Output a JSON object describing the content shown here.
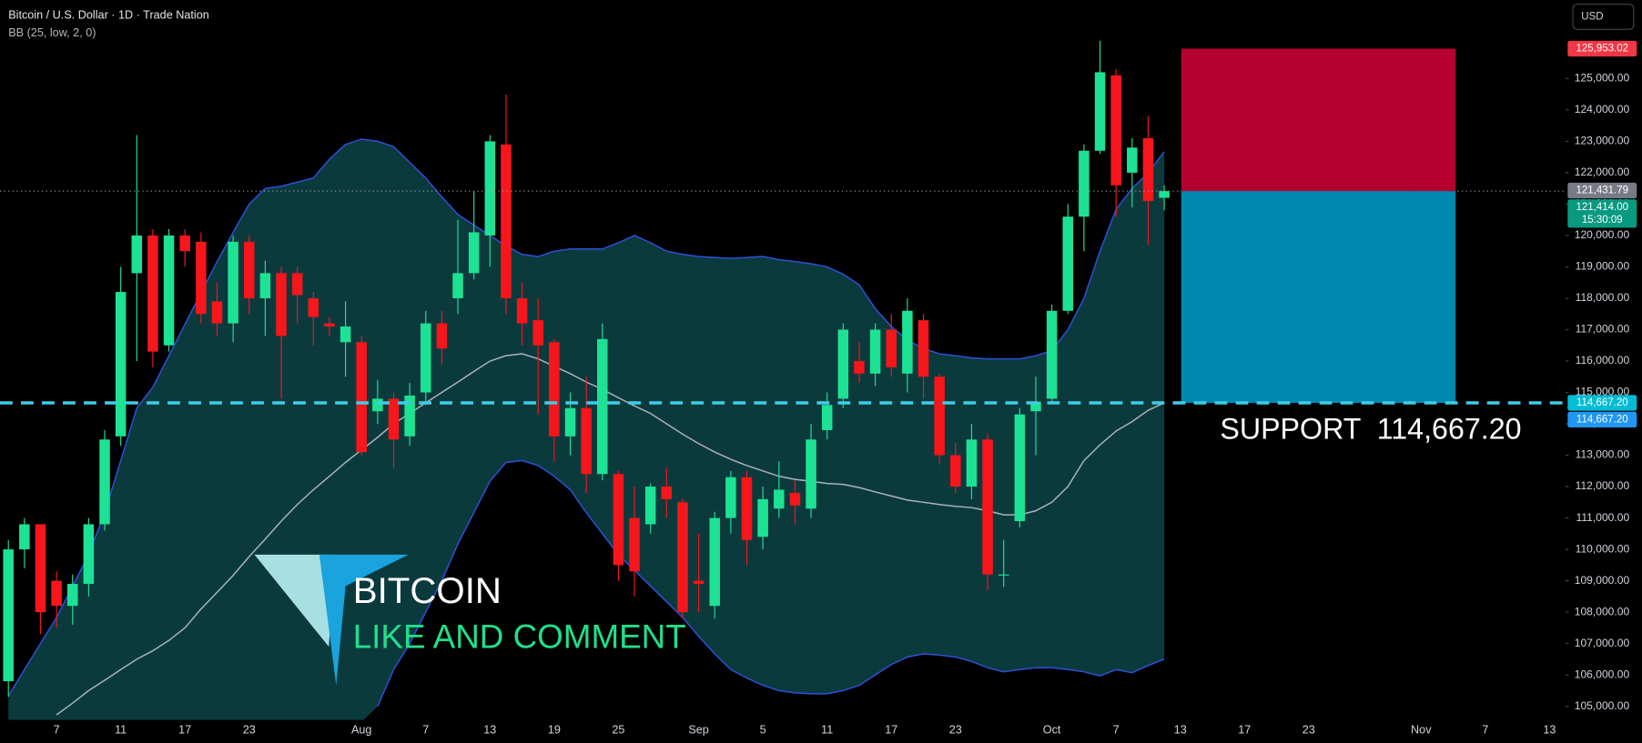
{
  "chart_data": {
    "type": "candlestick",
    "title": "Bitcoin / U.S. Dollar · 1D · Trade Nation",
    "indicator_label": "BB (25, low, 2, 0)",
    "currency": "USD",
    "categories": [
      null,
      null,
      null,
      "7",
      null,
      null,
      null,
      "11",
      null,
      null,
      null,
      "17",
      null,
      null,
      null,
      "23",
      null,
      null,
      null,
      null,
      null,
      null,
      "Aug",
      null,
      null,
      null,
      "7",
      null,
      null,
      null,
      "13",
      null,
      null,
      null,
      "19",
      null,
      null,
      null,
      "25",
      null,
      null,
      null,
      null,
      "Sep",
      null,
      null,
      null,
      "5",
      null,
      null,
      null,
      "11",
      null,
      null,
      null,
      "17",
      null,
      null,
      null,
      "23",
      null,
      null,
      null,
      null,
      null,
      "Oct",
      null,
      null,
      null,
      "7",
      null,
      null,
      null,
      "13",
      null,
      null,
      null,
      "17",
      null,
      null,
      null,
      "23",
      null,
      null,
      null,
      null,
      null,
      null,
      "Nov",
      null,
      null,
      null,
      "7",
      null,
      null,
      null,
      "13"
    ],
    "open": [
      105800,
      110000,
      110800,
      109000,
      108200,
      108900,
      110800,
      113600,
      118800,
      120000,
      116500,
      120000,
      119800,
      117900,
      117200,
      119800,
      118000,
      118800,
      118800,
      118000,
      117200,
      116600,
      116600,
      114400,
      114800,
      113600,
      115000,
      117200,
      118000,
      118800,
      120000,
      122900,
      118000,
      117300,
      116600,
      113600,
      114500,
      112400,
      112400,
      111000,
      110800,
      112000,
      111500,
      109000,
      108200,
      111000,
      112300,
      110400,
      111300,
      111800,
      111300,
      113800,
      114800,
      116000,
      115600,
      117000,
      115600,
      117300,
      115500,
      113000,
      112000,
      113500,
      109200,
      110900,
      114400,
      114800,
      117600,
      120600,
      122700,
      125100,
      122000,
      123100,
      121200,
      null,
      null,
      null,
      null,
      null,
      null,
      null,
      null,
      null,
      null,
      null,
      null,
      null,
      null,
      null,
      null,
      null,
      null,
      null,
      null,
      null,
      null,
      null,
      null
    ],
    "high": [
      110300,
      111000,
      110800,
      109300,
      109200,
      111000,
      113800,
      119000,
      123200,
      120200,
      120200,
      120200,
      120100,
      118500,
      120000,
      120000,
      119200,
      119000,
      119000,
      118200,
      117400,
      117900,
      116800,
      115400,
      115000,
      115300,
      117600,
      117600,
      120500,
      121400,
      123200,
      124500,
      118500,
      118000,
      116700,
      115000,
      115500,
      117200,
      112500,
      112000,
      112100,
      112600,
      111600,
      110500,
      111200,
      112500,
      112500,
      112000,
      112800,
      112200,
      114000,
      115000,
      117200,
      116600,
      117200,
      117500,
      118000,
      117500,
      115600,
      113400,
      114000,
      113700,
      110300,
      114500,
      115500,
      117800,
      121000,
      122900,
      126200,
      125300,
      123100,
      123800,
      121600,
      null,
      null,
      null,
      null,
      null,
      null,
      null,
      null,
      null,
      null,
      null,
      null,
      null,
      null,
      null,
      null,
      null,
      null,
      null,
      null,
      null,
      null,
      null,
      null
    ],
    "low": [
      105300,
      109400,
      107300,
      107500,
      107600,
      108500,
      110600,
      113300,
      116000,
      115800,
      116300,
      119000,
      117200,
      116800,
      116600,
      117500,
      116800,
      114800,
      117200,
      116500,
      116800,
      115500,
      113000,
      114000,
      112600,
      113300,
      114600,
      115900,
      117500,
      118600,
      119000,
      117500,
      116500,
      114300,
      112800,
      113000,
      111800,
      112200,
      109000,
      108500,
      110500,
      111000,
      107800,
      108000,
      107800,
      110500,
      109500,
      110000,
      111000,
      110800,
      111000,
      113500,
      114500,
      115300,
      115200,
      115500,
      115000,
      114800,
      112700,
      111800,
      111600,
      108700,
      108800,
      110700,
      113000,
      114700,
      117500,
      119500,
      122600,
      120600,
      120900,
      119700,
      120800,
      null,
      null,
      null,
      null,
      null,
      null,
      null,
      null,
      null,
      null,
      null,
      null,
      null,
      null,
      null,
      null,
      null,
      null,
      null,
      null,
      null,
      null,
      null,
      null
    ],
    "close": [
      110000,
      110800,
      108000,
      108200,
      108900,
      110800,
      113500,
      118200,
      120000,
      116300,
      120000,
      119500,
      117500,
      117200,
      119800,
      118000,
      118800,
      116800,
      118100,
      117400,
      117100,
      117100,
      113100,
      114800,
      113500,
      114900,
      117200,
      116400,
      118800,
      120100,
      123000,
      118000,
      117200,
      116500,
      113600,
      114500,
      112400,
      116700,
      109500,
      109300,
      112000,
      111600,
      108000,
      108900,
      111000,
      112300,
      110300,
      111600,
      111900,
      111400,
      113500,
      114600,
      117000,
      115600,
      117000,
      115800,
      117600,
      115500,
      113000,
      112000,
      113500,
      109200,
      109200,
      114300,
      114700,
      117600,
      120600,
      122700,
      125200,
      121600,
      122800,
      121100,
      121414,
      null,
      null,
      null,
      null,
      null,
      null,
      null,
      null,
      null,
      null,
      null,
      null,
      null,
      null,
      null,
      null,
      null,
      null,
      null,
      null,
      null,
      null,
      null,
      null
    ],
    "up_color": "#1de294",
    "down_color": "#f7161b",
    "bands": {
      "upper": [
        105330,
        106170,
        107000,
        107830,
        108830,
        109830,
        111170,
        112830,
        114500,
        115170,
        116170,
        117170,
        118170,
        119170,
        120100,
        121000,
        121500,
        121570,
        121700,
        121830,
        122430,
        122900,
        123070,
        123000,
        122830,
        122330,
        121830,
        121230,
        120670,
        120330,
        120000,
        119670,
        119400,
        119330,
        119500,
        119570,
        119570,
        119570,
        119770,
        120000,
        119770,
        119500,
        119400,
        119330,
        119300,
        119270,
        119300,
        119330,
        119230,
        119170,
        119100,
        119000,
        118770,
        118430,
        117670,
        117100,
        116670,
        116400,
        116230,
        116170,
        116100,
        116070,
        116070,
        116070,
        116170,
        116330,
        117000,
        118000,
        119500,
        120830,
        121500,
        122000,
        122670,
        null,
        null,
        null,
        null,
        null,
        null,
        null,
        null,
        null,
        null,
        null,
        null,
        null,
        null,
        null,
        null,
        null,
        null,
        null,
        null,
        null,
        null,
        null,
        null
      ],
      "middle": [
        null,
        null,
        null,
        104730,
        105100,
        105500,
        105830,
        106170,
        106500,
        106770,
        107100,
        107500,
        108100,
        108630,
        109170,
        109770,
        110330,
        110900,
        111430,
        111900,
        112330,
        112770,
        113170,
        113570,
        114000,
        114330,
        114670,
        115000,
        115330,
        115670,
        116000,
        116170,
        116230,
        116070,
        115830,
        115600,
        115330,
        115100,
        114830,
        114570,
        114330,
        114000,
        113670,
        113370,
        113100,
        112870,
        112670,
        112500,
        112330,
        112230,
        112170,
        112100,
        112070,
        111970,
        111830,
        111700,
        111570,
        111500,
        111430,
        111370,
        111330,
        111230,
        111100,
        111100,
        111230,
        111500,
        112000,
        112830,
        113330,
        113770,
        114070,
        114430,
        114670,
        null,
        null,
        null,
        null,
        null,
        null,
        null,
        null,
        null,
        null,
        null,
        null,
        null,
        null,
        null,
        null,
        null,
        null,
        null,
        null,
        null,
        null,
        null,
        null
      ],
      "lower": [
        null,
        null,
        null,
        null,
        null,
        null,
        null,
        null,
        null,
        null,
        null,
        null,
        null,
        null,
        null,
        null,
        null,
        null,
        null,
        null,
        null,
        null,
        null,
        105000,
        106170,
        107000,
        108000,
        109000,
        110170,
        111170,
        112170,
        112770,
        112830,
        112670,
        112330,
        111900,
        111170,
        110500,
        109830,
        109330,
        108830,
        108330,
        107830,
        107230,
        106670,
        106170,
        105900,
        105670,
        105500,
        105430,
        105400,
        105400,
        105500,
        105670,
        106000,
        106330,
        106570,
        106670,
        106630,
        106570,
        106430,
        106230,
        106100,
        106170,
        106230,
        106230,
        106170,
        106100,
        105970,
        106170,
        106070,
        106300,
        106500,
        null,
        null,
        null,
        null,
        null,
        null,
        null,
        null,
        null,
        null,
        null,
        null,
        null,
        null,
        null,
        null,
        null,
        null,
        null,
        null,
        null,
        null,
        null,
        null
      ],
      "line_color": "#2f4fd8",
      "middle_color": "#a9b3bb",
      "fill": "#0b3a3d"
    },
    "ylim": [
      104500,
      127500
    ],
    "yticks": [
      {
        "value": 105000,
        "label": "105,000.00"
      },
      {
        "value": 106000,
        "label": "106,000.00"
      },
      {
        "value": 107000,
        "label": "107,000.00"
      },
      {
        "value": 108000,
        "label": "108,000.00"
      },
      {
        "value": 109000,
        "label": "109,000.00"
      },
      {
        "value": 110000,
        "label": "110,000.00"
      },
      {
        "value": 111000,
        "label": "111,000.00"
      },
      {
        "value": 112000,
        "label": "112,000.00"
      },
      {
        "value": 113000,
        "label": "113,000.00"
      },
      {
        "value": 114000,
        "label": "114,000.00"
      },
      {
        "value": 115000,
        "label": "115,000.00"
      },
      {
        "value": 116000,
        "label": "116,000.00"
      },
      {
        "value": 117000,
        "label": "117,000.00"
      },
      {
        "value": 118000,
        "label": "118,000.00"
      },
      {
        "value": 119000,
        "label": "119,000.00"
      },
      {
        "value": 120000,
        "label": "120,000.00"
      },
      {
        "value": 121000,
        "label": "121,000.00"
      },
      {
        "value": 122000,
        "label": "122,000.00"
      },
      {
        "value": 123000,
        "label": "123,000.00"
      },
      {
        "value": 124000,
        "label": "124,000.00"
      },
      {
        "value": 125000,
        "label": "125,000.00"
      }
    ],
    "grid": false,
    "last_price": {
      "value": 121414,
      "color": "#9598a1"
    },
    "position": {
      "stop": 125953.02,
      "entry": 121414,
      "target": 114667.2,
      "stop_color": "#b5002f",
      "target_color": "#0089b0"
    },
    "support": {
      "value": 114667.2,
      "color": "#3fcde6",
      "text": "SUPPORT  114,667.20"
    },
    "price_tags": [
      {
        "value": 125953.02,
        "label": "125,953.02",
        "color": "#f23645"
      },
      {
        "value": 121431.79,
        "label": "121,431.79",
        "color": "#787b86"
      },
      {
        "value": 121414,
        "label": "121,414.00",
        "color": "#089981",
        "countdown": "15:30:09"
      },
      {
        "value": 114667.2,
        "label": "114,667.20",
        "color": "#00bcd4"
      },
      {
        "value": 114667.2,
        "label": "114,667.20",
        "color": "#2196f3"
      }
    ],
    "logo": {
      "line1": "BITCOIN",
      "line2": "LIKE AND COMMENT",
      "line2_color": "#1fe08a"
    }
  }
}
